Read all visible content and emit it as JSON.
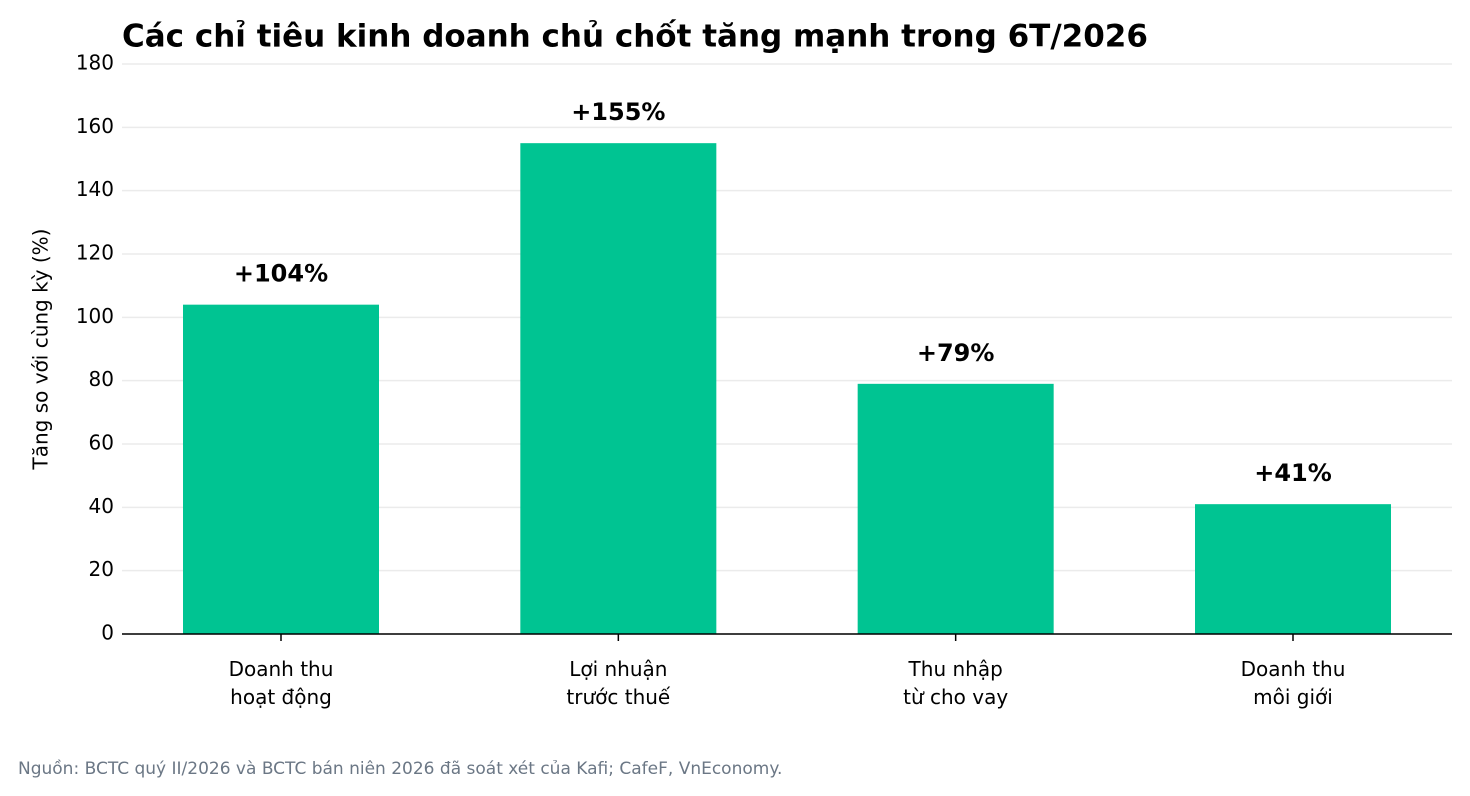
{
  "chart_data": {
    "type": "bar",
    "title": "Các chỉ tiêu kinh doanh chủ chốt tăng mạnh trong 6T/2026",
    "y_label": "Tăng so với cùng kỳ (%)",
    "source": "Nguồn: BCTC quý II/2026 và BCTC bán niên 2026 đã soát xét của Kafi; CafeF, VnEconomy.",
    "categories": [
      "Doanh thu\nhoạt động",
      "Lợi nhuận\ntrước thuế",
      "Thu nhập\ntừ cho vay",
      "Doanh thu\nmôi giới"
    ],
    "values": [
      104,
      155,
      79,
      41
    ],
    "value_labels": [
      "+104%",
      "+155%",
      "+79%",
      "+41%"
    ],
    "color": "#00c492",
    "ylim": [
      0,
      180
    ],
    "yticks": [
      0,
      20,
      40,
      60,
      80,
      100,
      120,
      140,
      160,
      180
    ],
    "grid": true
  }
}
